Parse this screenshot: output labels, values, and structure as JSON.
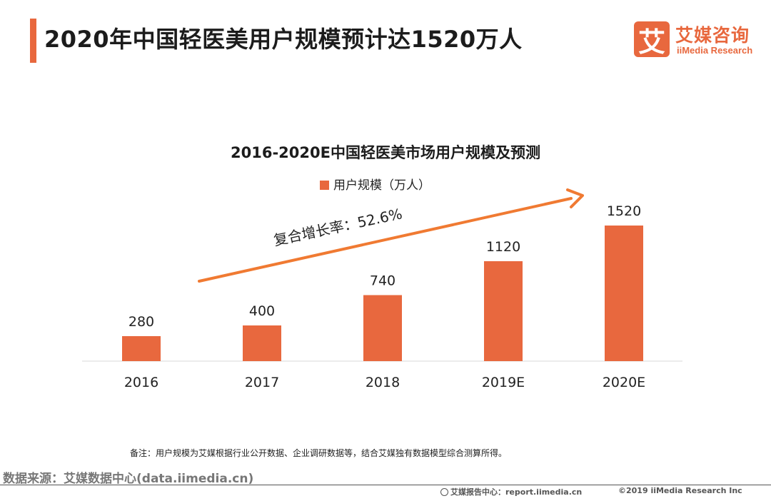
{
  "header": {
    "title": "2020年中国轻医美用户规模预计达1520万人"
  },
  "logo": {
    "mark": "艾",
    "cn": "艾媒咨询",
    "en": "iiMedia Research"
  },
  "chart_data": {
    "type": "bar",
    "title": "2016-2020E中国轻医美市场用户规模及预测",
    "categories": [
      "2016",
      "2017",
      "2018",
      "2019E",
      "2020E"
    ],
    "series": [
      {
        "name": "用户规模（万人）",
        "values": [
          280,
          400,
          740,
          1120,
          1520
        ]
      }
    ],
    "ylim": [
      0,
      1600
    ],
    "grid": false,
    "legend": "top-center",
    "annotation": "复合增长率：52.6%",
    "colors": {
      "bar": "#e8683e",
      "arrow": "#f07a32"
    }
  },
  "footer": {
    "note": "备注：用户规模为艾媒根据行业公开数据、企业调研数据等，结合艾媒独有数据模型综合测算所得。",
    "source": "数据来源：艾媒数据中心(data.iimedia.cn)",
    "report_center": "艾媒报告中心：report.iimedia.cn",
    "copyright": "©2019  iiMedia Research  Inc"
  }
}
